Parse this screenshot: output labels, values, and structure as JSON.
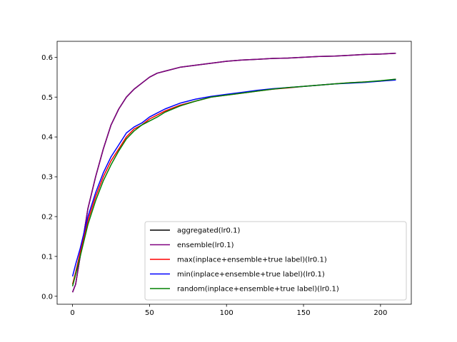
{
  "chart_data": {
    "type": "line",
    "title": "",
    "xlabel": "",
    "ylabel": "",
    "xlim": [
      -10,
      220
    ],
    "ylim": [
      -0.02,
      0.64
    ],
    "xticks": [
      0,
      50,
      100,
      150,
      200
    ],
    "yticks": [
      0.0,
      0.1,
      0.2,
      0.3,
      0.4,
      0.5,
      0.6
    ],
    "xtick_labels": [
      "0",
      "50",
      "100",
      "150",
      "200"
    ],
    "ytick_labels": [
      "0.0",
      "0.1",
      "0.2",
      "0.3",
      "0.4",
      "0.5",
      "0.6"
    ],
    "legend_position": "lower-right",
    "grid": false,
    "series": [
      {
        "name": "aggregated(lr0.1)",
        "color": "#000000",
        "x": [
          0,
          2,
          5,
          10,
          15,
          20,
          25,
          30,
          35,
          40,
          45,
          50,
          55,
          60,
          70,
          80,
          90,
          100,
          110,
          120,
          130,
          140,
          150,
          160,
          170,
          180,
          190,
          200,
          210
        ],
        "y": [
          0.01,
          0.03,
          0.1,
          0.22,
          0.3,
          0.37,
          0.43,
          0.47,
          0.5,
          0.52,
          0.535,
          0.55,
          0.56,
          0.565,
          0.575,
          0.58,
          0.585,
          0.59,
          0.593,
          0.595,
          0.597,
          0.598,
          0.6,
          0.602,
          0.603,
          0.605,
          0.607,
          0.608,
          0.61
        ]
      },
      {
        "name": "ensemble(lr0.1)",
        "color": "#800080",
        "x": [
          0,
          2,
          5,
          10,
          15,
          20,
          25,
          30,
          35,
          40,
          45,
          50,
          55,
          60,
          70,
          80,
          90,
          100,
          110,
          120,
          130,
          140,
          150,
          160,
          170,
          180,
          190,
          200,
          210
        ],
        "y": [
          0.01,
          0.03,
          0.1,
          0.22,
          0.3,
          0.37,
          0.43,
          0.47,
          0.5,
          0.52,
          0.535,
          0.55,
          0.56,
          0.565,
          0.575,
          0.58,
          0.585,
          0.59,
          0.593,
          0.595,
          0.597,
          0.598,
          0.6,
          0.602,
          0.603,
          0.605,
          0.607,
          0.608,
          0.61
        ]
      },
      {
        "name": "max(inplace+ensemble+true label)(lr0.1)",
        "color": "#ff0000",
        "x": [
          0,
          2,
          5,
          10,
          15,
          20,
          25,
          30,
          35,
          40,
          45,
          50,
          55,
          60,
          70,
          80,
          90,
          100,
          110,
          120,
          130,
          140,
          150,
          160,
          170,
          180,
          190,
          200,
          210
        ],
        "y": [
          0.03,
          0.06,
          0.11,
          0.19,
          0.25,
          0.3,
          0.34,
          0.37,
          0.4,
          0.42,
          0.43,
          0.445,
          0.455,
          0.465,
          0.48,
          0.49,
          0.5,
          0.505,
          0.51,
          0.515,
          0.52,
          0.523,
          0.527,
          0.53,
          0.533,
          0.536,
          0.538,
          0.54,
          0.545
        ]
      },
      {
        "name": "min(inplace+ensemble+true label)(lr0.1)",
        "color": "#0000ff",
        "x": [
          0,
          2,
          5,
          10,
          15,
          20,
          25,
          30,
          35,
          40,
          45,
          50,
          55,
          60,
          70,
          80,
          90,
          100,
          110,
          120,
          130,
          140,
          150,
          160,
          170,
          180,
          190,
          200,
          210
        ],
        "y": [
          0.05,
          0.08,
          0.12,
          0.2,
          0.26,
          0.31,
          0.35,
          0.38,
          0.41,
          0.425,
          0.435,
          0.45,
          0.46,
          0.47,
          0.485,
          0.495,
          0.502,
          0.507,
          0.512,
          0.517,
          0.521,
          0.524,
          0.527,
          0.53,
          0.533,
          0.535,
          0.537,
          0.54,
          0.543
        ]
      },
      {
        "name": "random(inplace+ensemble+true label)(lr0.1)",
        "color": "#008000",
        "x": [
          0,
          2,
          5,
          10,
          15,
          20,
          25,
          30,
          35,
          40,
          45,
          50,
          55,
          60,
          70,
          80,
          90,
          100,
          110,
          120,
          130,
          140,
          150,
          160,
          170,
          180,
          190,
          200,
          210
        ],
        "y": [
          0.025,
          0.055,
          0.1,
          0.18,
          0.24,
          0.29,
          0.33,
          0.365,
          0.395,
          0.415,
          0.43,
          0.44,
          0.45,
          0.462,
          0.478,
          0.49,
          0.5,
          0.505,
          0.51,
          0.515,
          0.52,
          0.524,
          0.527,
          0.53,
          0.533,
          0.536,
          0.538,
          0.541,
          0.545
        ]
      }
    ]
  }
}
